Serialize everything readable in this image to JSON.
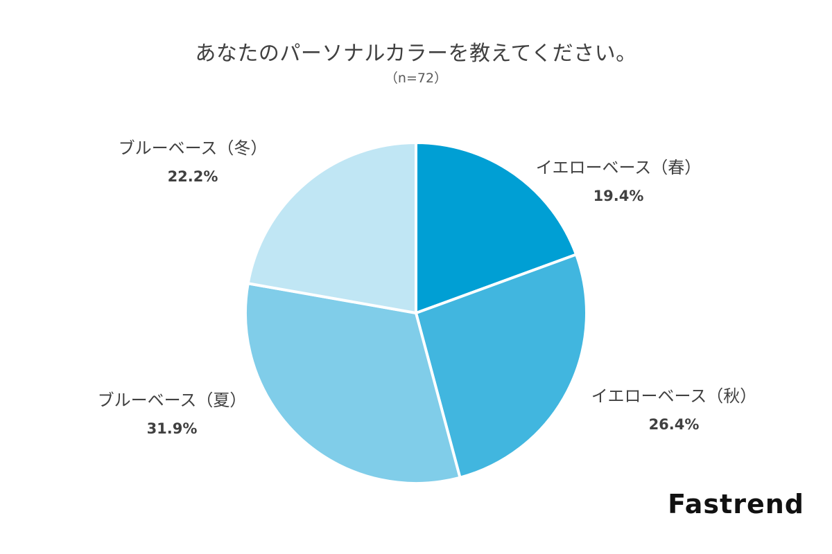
{
  "chart_data": {
    "type": "pie",
    "title": "あなたのパーソナルカラーを教えてください。",
    "subtitle": "（n=72）",
    "slices": [
      {
        "label": "イエローベース（春）",
        "value": 19.4,
        "value_label": "19.4%",
        "color": "#009fd4"
      },
      {
        "label": "イエローベース（秋）",
        "value": 26.4,
        "value_label": "26.4%",
        "color": "#41b6df"
      },
      {
        "label": "ブルーベース（夏）",
        "value": 31.9,
        "value_label": "31.9%",
        "color": "#80cde9"
      },
      {
        "label": "ブルーベース（冬）",
        "value": 22.2,
        "value_label": "22.2%",
        "color": "#c0e6f4"
      }
    ],
    "start_angle": "12 o'clock",
    "direction": "clockwise",
    "legend": "none (labels outside slices)"
  },
  "brand": {
    "name": "Fastrend"
  }
}
